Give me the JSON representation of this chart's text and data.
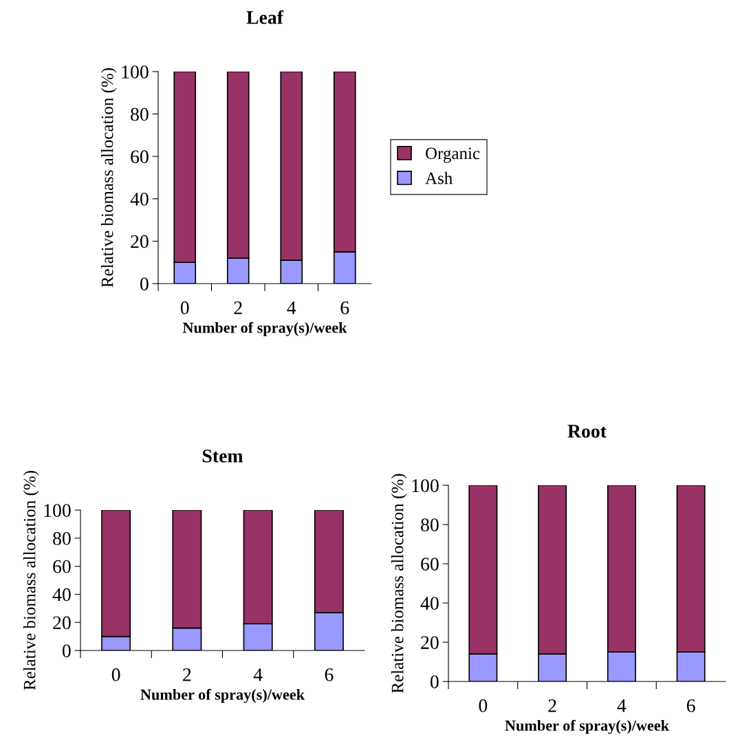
{
  "chart_data": [
    {
      "type": "bar",
      "title": "Leaf",
      "xlabel": "Number of spray(s)/week",
      "ylabel": "Relative biomass allocation (%)",
      "categories": [
        "0",
        "2",
        "4",
        "6"
      ],
      "stacked": true,
      "legend": "right",
      "grid": false,
      "ylim": [
        0,
        100
      ],
      "yticks": [
        0,
        20,
        40,
        60,
        80,
        100
      ],
      "series": [
        {
          "name": "Ash",
          "color": "#9999ff",
          "values": [
            10,
            12,
            11,
            15
          ]
        },
        {
          "name": "Organic",
          "color": "#993366",
          "values": [
            90,
            88,
            89,
            85
          ]
        }
      ]
    },
    {
      "type": "bar",
      "title": "Stem",
      "xlabel": "Number of spray(s)/week",
      "ylabel": "Relative biomass allocation (%)",
      "categories": [
        "0",
        "2",
        "4",
        "6"
      ],
      "stacked": true,
      "grid": false,
      "ylim": [
        0,
        100
      ],
      "yticks": [
        0,
        20,
        40,
        60,
        80,
        100
      ],
      "series": [
        {
          "color": "#9999ff",
          "values": [
            10,
            16,
            19,
            27
          ]
        },
        {
          "color": "#993366",
          "values": [
            90,
            84,
            81,
            73
          ]
        }
      ]
    },
    {
      "type": "bar",
      "title": "Root",
      "xlabel": "Number of spray(s)/week",
      "ylabel": "Relative biomass allocation (%)",
      "categories": [
        "0",
        "2",
        "4",
        "6"
      ],
      "stacked": true,
      "grid": false,
      "ylim": [
        0,
        100
      ],
      "yticks": [
        0,
        20,
        40,
        60,
        80,
        100
      ],
      "series": [
        {
          "color": "#9999ff",
          "values": [
            14,
            14,
            15,
            15
          ]
        },
        {
          "color": "#993366",
          "values": [
            86,
            86,
            85,
            85
          ]
        }
      ]
    }
  ]
}
